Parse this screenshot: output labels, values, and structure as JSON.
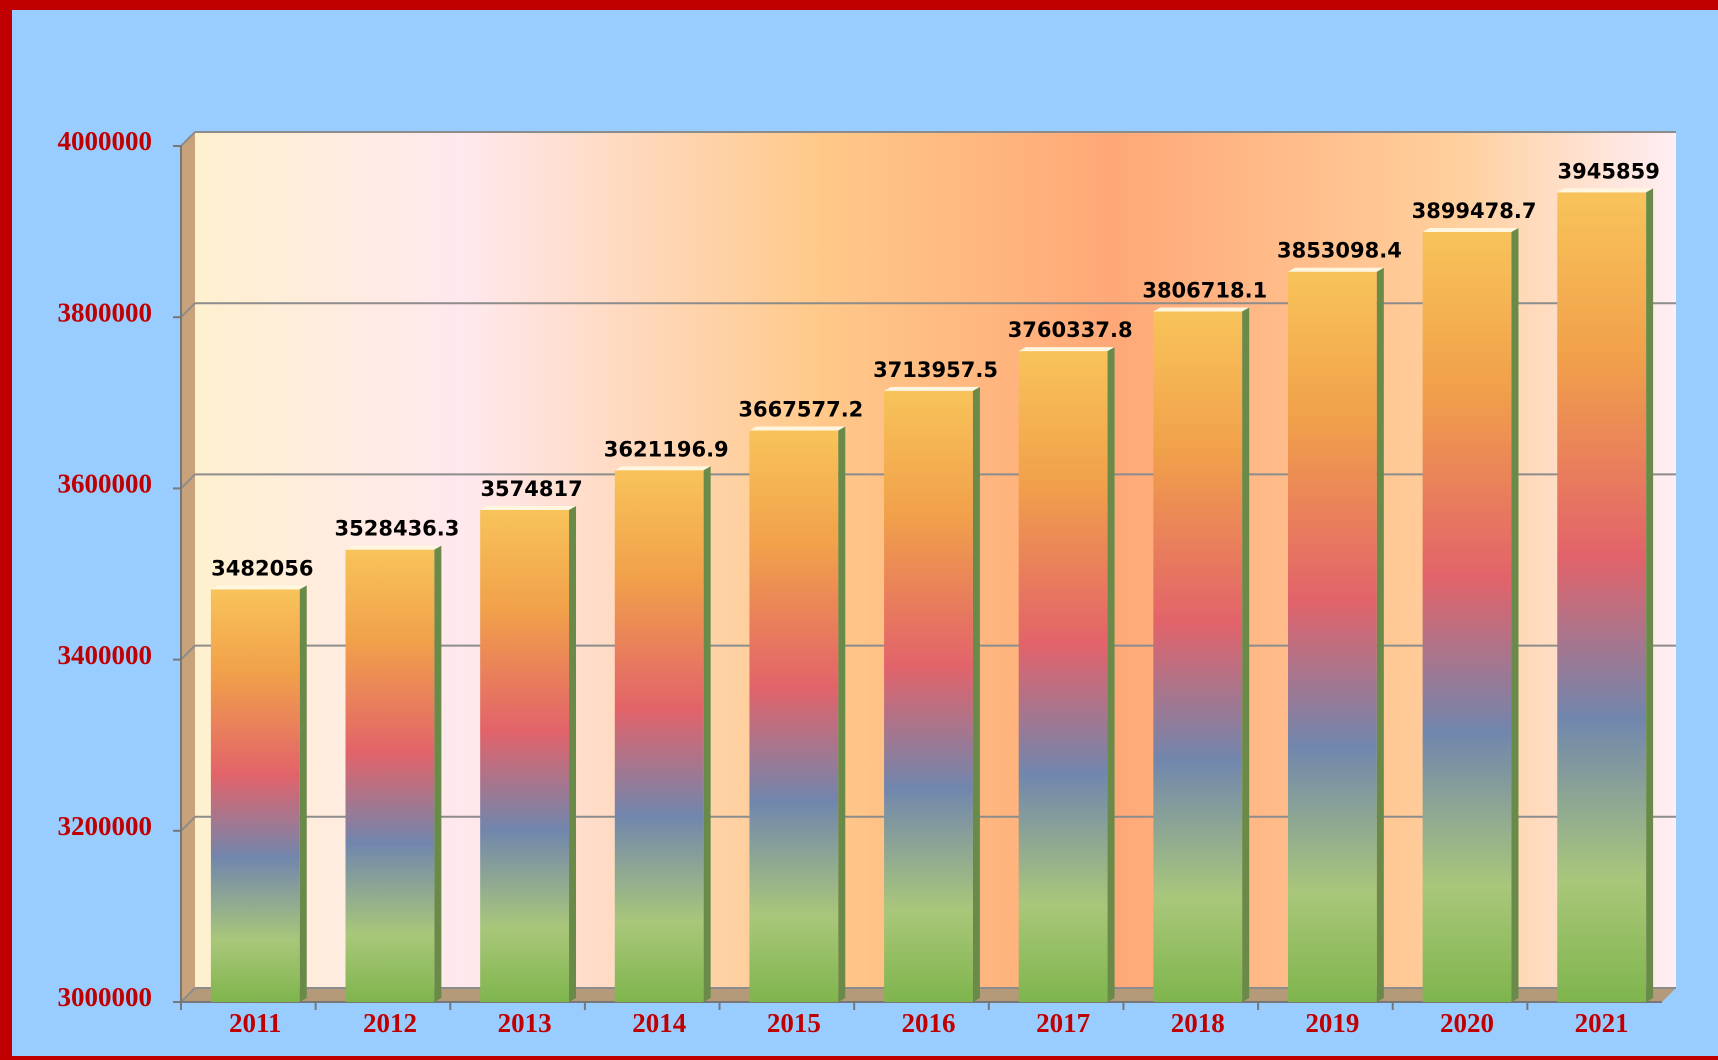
{
  "chart_data": {
    "type": "bar",
    "categories": [
      "2011",
      "2012",
      "2013",
      "2014",
      "2015",
      "2016",
      "2017",
      "2018",
      "2019",
      "2020",
      "2021"
    ],
    "values": [
      3482056,
      3528436.3,
      3574817,
      3621196.9,
      3667577.2,
      3713957.5,
      3760337.8,
      3806718.1,
      3853098.4,
      3899478.7,
      3945859
    ],
    "ylim": [
      3000000,
      4000000
    ],
    "yticks": [
      3000000,
      3200000,
      3400000,
      3600000,
      3800000,
      4000000
    ],
    "grid": true
  }
}
